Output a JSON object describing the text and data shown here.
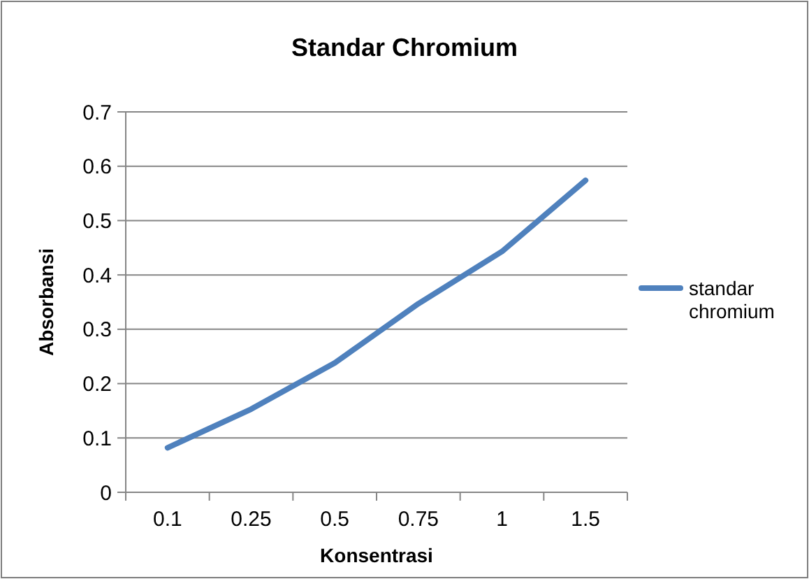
{
  "chart_data": {
    "type": "line",
    "title": "Standar Chromium",
    "xlabel": "Konsentrasi",
    "ylabel": "Absorbansi",
    "categories": [
      "0.1",
      "0.25",
      "0.5",
      "0.75",
      "1",
      "1.5"
    ],
    "series": [
      {
        "name": "standar chromium",
        "color": "#4f81bd",
        "values": [
          0.082,
          0.153,
          0.238,
          0.347,
          0.443,
          0.574
        ]
      }
    ],
    "ylim": [
      0,
      0.7
    ],
    "yticks": [
      0,
      0.1,
      0.2,
      0.3,
      0.4,
      0.5,
      0.6,
      0.7
    ],
    "grid": "y",
    "legend": "right",
    "marker": "none"
  }
}
